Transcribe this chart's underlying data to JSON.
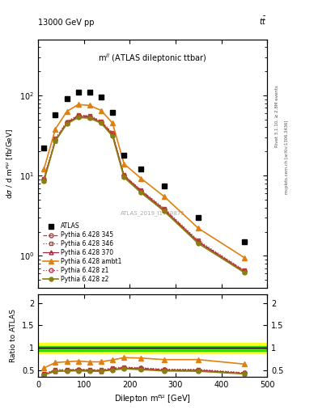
{
  "title_top": "13000 GeV pp",
  "title_top_right": "tt",
  "annotation": "m$^{ll}$ (ATLAS dileptonic ttbar)",
  "watermark": "ATLAS_2019_I1759875",
  "right_label": "Rivet 3.1.10, ≥ 2.8M events",
  "right_label2": "mcplots.cern.ch [arXiv:1306.3436]",
  "xlabel": "Dilepton m$^{emu}$ [GeV]",
  "ylabel": "dσ / d m$^{emu}$ [fb/GeV]",
  "ylabel_ratio": "Ratio to ATLAS",
  "xlim": [
    0,
    500
  ],
  "ylim_main": [
    0.4,
    500
  ],
  "ylim_ratio": [
    0.35,
    2.2
  ],
  "atlas_x": [
    12.5,
    37.5,
    62.5,
    87.5,
    112.5,
    137.5,
    162.5,
    187.5,
    225,
    275,
    350,
    450
  ],
  "atlas_y": [
    22,
    57,
    92,
    110,
    110,
    95,
    62,
    18,
    12,
    7.5,
    3.0,
    1.5
  ],
  "pythia_x": [
    12.5,
    37.5,
    62.5,
    87.5,
    112.5,
    137.5,
    162.5,
    187.5,
    225,
    275,
    350,
    450
  ],
  "p345_y": [
    9.0,
    28,
    46,
    56,
    55,
    47,
    33,
    10.0,
    6.5,
    3.8,
    1.5,
    0.65
  ],
  "p346_y": [
    9.2,
    29,
    47,
    57,
    56,
    48,
    34,
    10.2,
    6.6,
    3.9,
    1.55,
    0.66
  ],
  "p370_y": [
    8.8,
    27,
    45,
    55,
    54,
    46,
    32,
    9.8,
    6.3,
    3.7,
    1.48,
    0.63
  ],
  "pambt1_y": [
    12.0,
    38,
    63,
    77,
    75,
    65,
    45,
    14,
    9.2,
    5.5,
    2.2,
    0.95
  ],
  "pz1_y": [
    9.0,
    28,
    45,
    55,
    54,
    46,
    33,
    10.0,
    6.5,
    3.8,
    1.5,
    0.65
  ],
  "pz2_y": [
    8.5,
    27,
    44,
    53,
    52,
    45,
    31,
    9.5,
    6.1,
    3.6,
    1.42,
    0.62
  ],
  "ratio_p345": [
    0.41,
    0.49,
    0.5,
    0.51,
    0.5,
    0.495,
    0.532,
    0.555,
    0.542,
    0.507,
    0.5,
    0.433
  ],
  "ratio_p346": [
    0.42,
    0.51,
    0.51,
    0.518,
    0.509,
    0.505,
    0.548,
    0.567,
    0.55,
    0.52,
    0.517,
    0.44
  ],
  "ratio_p370": [
    0.4,
    0.47,
    0.489,
    0.5,
    0.491,
    0.484,
    0.516,
    0.544,
    0.525,
    0.493,
    0.493,
    0.42
  ],
  "ratio_pambt1": [
    0.545,
    0.667,
    0.685,
    0.7,
    0.682,
    0.684,
    0.726,
    0.778,
    0.767,
    0.733,
    0.733,
    0.633
  ],
  "ratio_pz1": [
    0.41,
    0.49,
    0.489,
    0.5,
    0.491,
    0.484,
    0.532,
    0.555,
    0.542,
    0.507,
    0.5,
    0.433
  ],
  "ratio_pz2": [
    0.386,
    0.474,
    0.478,
    0.482,
    0.473,
    0.473,
    0.5,
    0.528,
    0.508,
    0.48,
    0.473,
    0.413
  ],
  "color_345": "#c0303a",
  "color_346": "#b84020",
  "color_370": "#a02838",
  "color_ambt1": "#e08010",
  "color_z1": "#c03040",
  "color_z2": "#888010",
  "band_green_low": 0.93,
  "band_green_high": 1.04,
  "band_yellow_low": 0.87,
  "band_yellow_high": 1.1
}
